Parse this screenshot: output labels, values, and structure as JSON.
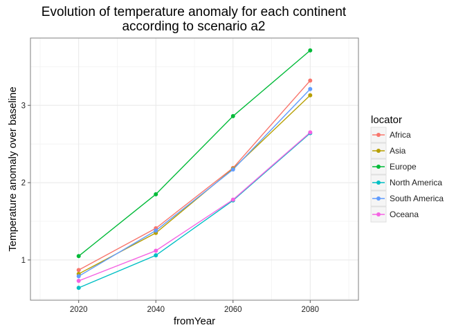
{
  "chart_data": {
    "type": "line",
    "title_lines": [
      "Evolution of temperature anomaly for each continent",
      "according to scenario a2"
    ],
    "xlabel": "fromYear",
    "ylabel": "Temperature anomaly over baseline",
    "x": [
      2020,
      2040,
      2060,
      2080
    ],
    "xlim": [
      2007.5,
      2092.5
    ],
    "ylim": [
      0.48,
      3.87
    ],
    "xticks": [
      2020,
      2040,
      2060,
      2080
    ],
    "yticks": [
      1,
      2,
      3
    ],
    "xminor": [
      2010,
      2030,
      2050,
      2070,
      2090
    ],
    "yminor": [
      0.5,
      1.5,
      2.5,
      3.5
    ],
    "grid": true,
    "legend": {
      "title": "locator",
      "placement": "right"
    },
    "series": [
      {
        "name": "Africa",
        "color": "#F8766D",
        "values": [
          0.87,
          1.41,
          2.19,
          3.32
        ]
      },
      {
        "name": "Asia",
        "color": "#B79F00",
        "values": [
          0.82,
          1.35,
          2.18,
          3.13
        ]
      },
      {
        "name": "Europe",
        "color": "#00BA38",
        "values": [
          1.05,
          1.85,
          2.86,
          3.71
        ]
      },
      {
        "name": "North America",
        "color": "#00BFC4",
        "values": [
          0.64,
          1.06,
          1.77,
          2.64
        ]
      },
      {
        "name": "South America",
        "color": "#619CFF",
        "values": [
          0.79,
          1.38,
          2.17,
          3.21
        ]
      },
      {
        "name": "Oceana",
        "color": "#F564E3",
        "values": [
          0.73,
          1.12,
          1.78,
          2.65
        ]
      }
    ]
  }
}
